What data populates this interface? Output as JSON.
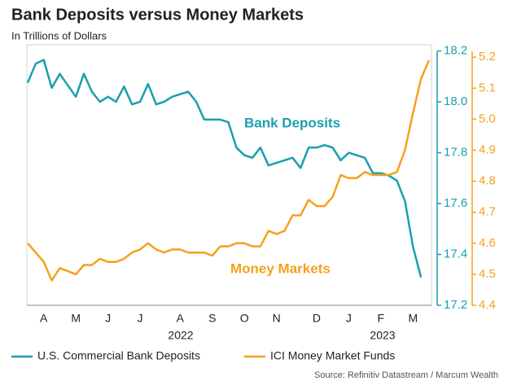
{
  "chart_data": {
    "type": "line",
    "title": "Bank Deposits versus Money Markets",
    "subtitle": "In Trillions of Dollars",
    "source": "Source: Refinitiv Datastream / Marcum Wealth",
    "years": [
      "2022",
      "2023"
    ],
    "annotations": [
      {
        "text": "Bank Deposits",
        "color": "#1a9fae"
      },
      {
        "text": "Money Markets",
        "color": "#f5a11c"
      }
    ],
    "categories": [
      null,
      null,
      "A",
      null,
      null,
      null,
      "M",
      null,
      null,
      null,
      "J",
      null,
      null,
      null,
      "J",
      null,
      null,
      null,
      null,
      "A",
      null,
      null,
      null,
      "S",
      null,
      null,
      null,
      "O",
      null,
      null,
      null,
      "N",
      null,
      null,
      null,
      null,
      "D",
      null,
      null,
      null,
      "J",
      null,
      null,
      null,
      "F",
      null,
      null,
      null,
      "M",
      null,
      null
    ],
    "series": [
      {
        "name": "U.S. Commercial Bank Deposits",
        "color": "#1a9fae",
        "axis": "y",
        "values": [
          18.075,
          18.15,
          18.165,
          18.055,
          18.11,
          18.065,
          18.02,
          18.11,
          18.04,
          18.0,
          18.02,
          18.0,
          18.06,
          17.99,
          18.0,
          18.07,
          17.99,
          18.0,
          18.02,
          18.03,
          18.04,
          18.0,
          17.93,
          17.93,
          17.93,
          17.92,
          17.82,
          17.79,
          17.78,
          17.82,
          17.75,
          17.76,
          17.77,
          17.78,
          17.74,
          17.82,
          17.82,
          17.83,
          17.82,
          17.77,
          17.8,
          17.79,
          17.78,
          17.72,
          17.72,
          17.71,
          17.69,
          17.61,
          17.43,
          17.31,
          null
        ]
      },
      {
        "name": "ICI Money Market Funds",
        "color": "#f5a11c",
        "axis": "y2",
        "values": [
          4.6,
          4.57,
          4.54,
          4.48,
          4.52,
          4.51,
          4.5,
          4.53,
          4.53,
          4.55,
          4.54,
          4.54,
          4.55,
          4.57,
          4.58,
          4.6,
          4.58,
          4.57,
          4.58,
          4.58,
          4.57,
          4.57,
          4.57,
          4.56,
          4.59,
          4.59,
          4.6,
          4.6,
          4.59,
          4.59,
          4.64,
          4.63,
          4.64,
          4.69,
          4.69,
          4.74,
          4.72,
          4.72,
          4.75,
          4.82,
          4.81,
          4.81,
          4.83,
          4.82,
          4.82,
          4.82,
          4.83,
          4.9,
          5.02,
          5.13,
          5.19
        ]
      }
    ],
    "ylim": [
      17.2,
      18.2
    ],
    "yticks": [
      17.2,
      17.4,
      17.6,
      17.8,
      {
        "value": 18,
        "label": "18.0"
      },
      18.2
    ],
    "y2lim": [
      4.4,
      5.22
    ],
    "y2ticks": [
      4.4,
      4.5,
      4.6,
      4.7,
      4.8,
      4.9,
      {
        "value": 5,
        "label": "5.0"
      },
      5.1,
      5.2
    ]
  }
}
